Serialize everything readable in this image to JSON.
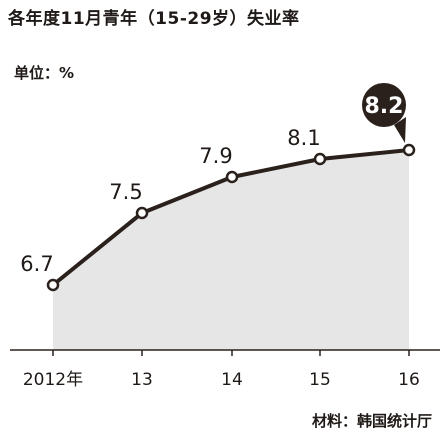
{
  "title": "各年度11月青年（15-29岁）失业率",
  "unit_label": "单位：%",
  "source": "材料：韩国统计厅",
  "colors": {
    "line": "#2a211c",
    "area": "#e6e6e6",
    "axis": "#2a211c",
    "highlight_bg": "#2a211c",
    "highlight_text": "#ffffff"
  },
  "chart_data": {
    "type": "area",
    "title": "各年度11月青年（15-29岁）失业率",
    "xlabel": "",
    "ylabel": "",
    "categories": [
      "2012年",
      "13",
      "14",
      "15",
      "16"
    ],
    "values": [
      6.7,
      7.5,
      7.9,
      8.1,
      8.2
    ],
    "value_labels": [
      "6.7",
      "7.5",
      "7.9",
      "8.1",
      "8.2"
    ],
    "highlight_index": 4,
    "grid": false,
    "legend": "none"
  }
}
